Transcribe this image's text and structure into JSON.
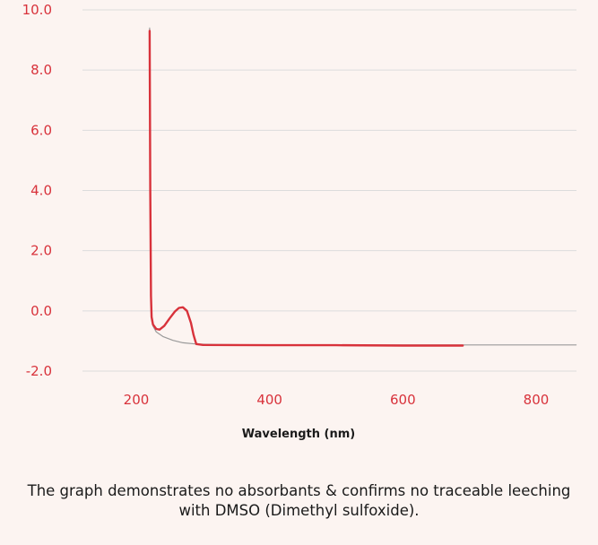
{
  "chart_data": {
    "type": "line",
    "title": "",
    "xlabel": "Wavelength (nm)",
    "ylabel": "",
    "xlim": [
      100,
      860
    ],
    "ylim": [
      -2.0,
      10.0
    ],
    "yticks": [
      10.0,
      8.0,
      6.0,
      4.0,
      2.0,
      0.0,
      -2.0
    ],
    "ytick_labels": [
      "10.0",
      "8.0",
      "6.0",
      "4.0",
      "2.0",
      "0.0",
      "-2.0"
    ],
    "xticks": [
      200,
      400,
      600,
      800
    ],
    "xtick_labels": [
      "200",
      "400",
      "600",
      "800"
    ],
    "grid": true,
    "legend": "none",
    "series": [
      {
        "color": "#9a9a9a",
        "x": [
          220,
          221,
          222,
          223,
          225,
          230,
          240,
          255,
          270,
          290,
          320,
          400,
          600,
          860
        ],
        "y": [
          9.4,
          4.0,
          0.5,
          -0.3,
          -0.5,
          -0.7,
          -0.85,
          -0.98,
          -1.06,
          -1.1,
          -1.12,
          -1.13,
          -1.13,
          -1.13
        ]
      },
      {
        "color": "#d8323b",
        "x": [
          220,
          221,
          222,
          223,
          225,
          230,
          235,
          242,
          250,
          258,
          264,
          270,
          276,
          282,
          286,
          290,
          300,
          400,
          500,
          600,
          690
        ],
        "y": [
          9.3,
          4.0,
          0.5,
          -0.2,
          -0.45,
          -0.6,
          -0.62,
          -0.5,
          -0.25,
          -0.02,
          0.1,
          0.12,
          0.0,
          -0.4,
          -0.8,
          -1.1,
          -1.13,
          -1.14,
          -1.14,
          -1.15,
          -1.15
        ]
      }
    ]
  },
  "caption": "The graph demonstrates no absorbants & confirms no traceable leeching with DMSO (Dimethyl sulfoxide).",
  "colors": {
    "background": "#fcf4f1",
    "gridline": "#dcdcdc",
    "accent": "#d8323b"
  }
}
